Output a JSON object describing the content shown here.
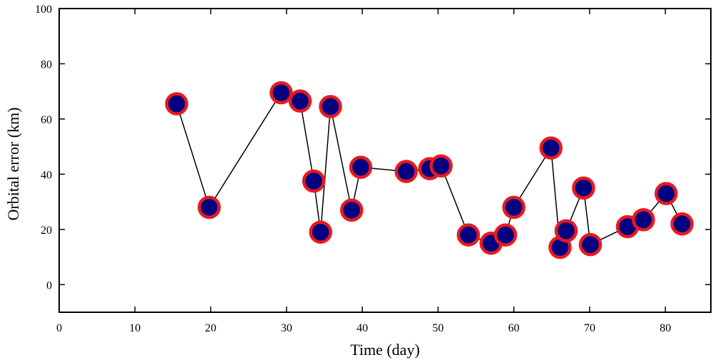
{
  "chart_data": {
    "type": "scatter",
    "xlabel": "Time (day)",
    "ylabel": "Orbital error (km)",
    "xlim": [
      0,
      86
    ],
    "ylim": [
      -10,
      100
    ],
    "xticks": [
      0,
      10,
      20,
      30,
      40,
      50,
      60,
      70,
      80
    ],
    "yticks": [
      0,
      20,
      40,
      60,
      80,
      100
    ],
    "grid": false,
    "connected": true,
    "marker": {
      "fill": "#000080",
      "edge": "#e8191f"
    },
    "line_color": "#000000",
    "series": [
      {
        "x": [
          15.5,
          19.8,
          29.3,
          31.8,
          33.6,
          34.5,
          35.8,
          38.6,
          39.8,
          45.8,
          48.9,
          50.4,
          54.0,
          57.0,
          58.9,
          60.0,
          64.9,
          66.1,
          66.9,
          69.2,
          70.1,
          75.0,
          77.1,
          80.1,
          82.2
        ],
        "y": [
          65.5,
          28.0,
          69.5,
          66.5,
          37.5,
          19.0,
          64.5,
          27.0,
          42.5,
          41.0,
          42.0,
          43.0,
          18.0,
          15.0,
          18.0,
          28.0,
          49.5,
          13.5,
          19.5,
          35.0,
          14.5,
          21.0,
          23.5,
          33.0,
          22.0
        ]
      }
    ]
  }
}
